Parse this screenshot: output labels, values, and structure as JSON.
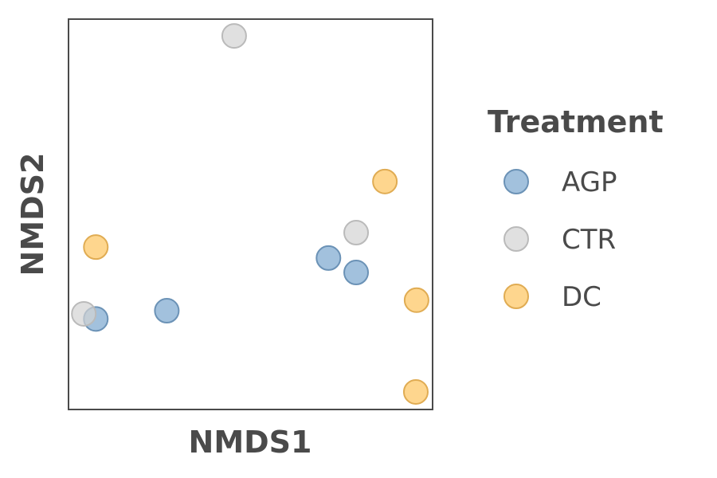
{
  "chart_data": {
    "type": "scatter",
    "xlabel": "NMDS1",
    "ylabel": "NMDS2",
    "xlim": [
      0,
      100
    ],
    "ylim": [
      0,
      100
    ],
    "grid": false,
    "tick_labels": false,
    "legend": {
      "title": "Treatment",
      "position": "right",
      "entries": [
        {
          "name": "AGP",
          "color": "#7aa6cf"
        },
        {
          "name": "CTR",
          "color": "#d3d3d3"
        },
        {
          "name": "DC",
          "color": "#fec45e"
        }
      ]
    },
    "series": [
      {
        "name": "AGP",
        "color": "#7aa6cf",
        "points": [
          [
            7.5,
            23.2
          ],
          [
            27.0,
            25.3
          ],
          [
            71.4,
            38.8
          ],
          [
            79.0,
            35.1
          ]
        ]
      },
      {
        "name": "CTR",
        "color": "#d3d3d3",
        "points": [
          [
            4.2,
            24.5
          ],
          [
            45.5,
            95.7
          ],
          [
            79.0,
            45.3
          ]
        ]
      },
      {
        "name": "DC",
        "color": "#fec45e",
        "points": [
          [
            7.5,
            41.6
          ],
          [
            86.9,
            58.4
          ],
          [
            95.6,
            28.0
          ],
          [
            95.4,
            4.5
          ]
        ]
      }
    ]
  }
}
